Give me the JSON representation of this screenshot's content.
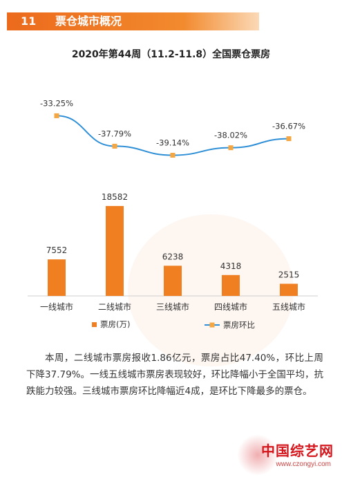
{
  "header": {
    "number": "11",
    "title": "票仓城市概况"
  },
  "chart_data": {
    "type": "bar+line",
    "title": "2020年第44周（11.2-11.8）全国票仓票房",
    "categories": [
      "一线城市",
      "二线城市",
      "三线城市",
      "四线城市",
      "五线城市"
    ],
    "series": [
      {
        "name": "票房(万)",
        "type": "bar",
        "values": [
          7552,
          18582,
          6238,
          4318,
          2515
        ],
        "labels": [
          "7552",
          "18582",
          "6238",
          "4318",
          "2515"
        ]
      },
      {
        "name": "票房环比",
        "type": "line",
        "values": [
          -33.25,
          -37.79,
          -39.14,
          -38.02,
          -36.67
        ],
        "labels": [
          "-33.25%",
          "-37.79%",
          "-39.14%",
          "-38.02%",
          "-36.67%"
        ]
      }
    ],
    "legend_position": "bottom",
    "colors": {
      "bar": "#f07f22",
      "line": "#2e8fd6",
      "marker": "#f4a642"
    }
  },
  "body_text": "本周，二线城市票房报收1.86亿元，票房占比47.40%，环比上周下降37.79%。一线五线城市票房表现较好，环比降幅小于全国平均，抗跌能力较强。三线城市票房环比降幅近4成，是环比下降最多的票仓。",
  "watermark": {
    "logo_text": "中国综艺网",
    "url": "www.czongyi.com"
  }
}
